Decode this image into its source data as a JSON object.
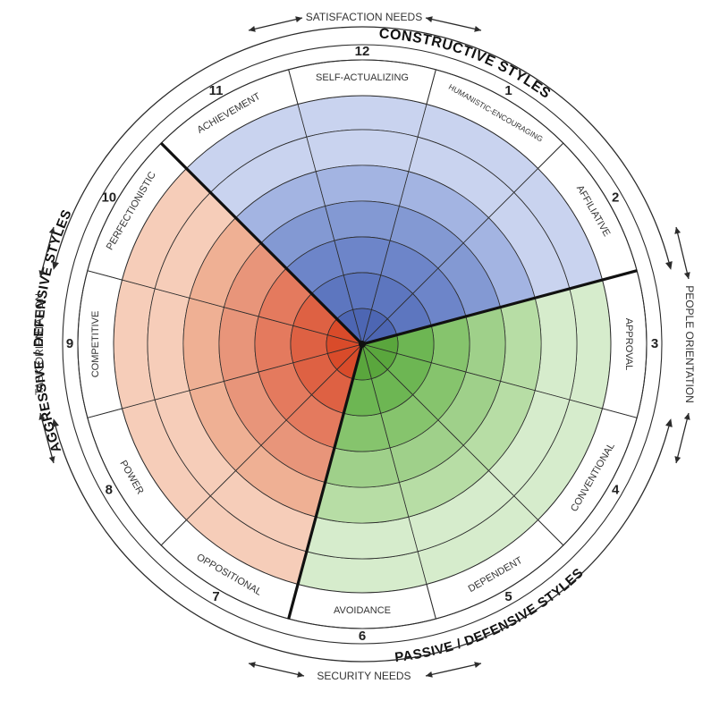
{
  "segments": [
    {
      "number": "1",
      "label": "HUMANISTIC-ENCOURAGING",
      "group": "constructive"
    },
    {
      "number": "2",
      "label": "AFFILIATIVE",
      "group": "constructive"
    },
    {
      "number": "3",
      "label": "APPROVAL",
      "group": "passive"
    },
    {
      "number": "4",
      "label": "CONVENTIONAL",
      "group": "passive"
    },
    {
      "number": "5",
      "label": "DEPENDENT",
      "group": "passive"
    },
    {
      "number": "6",
      "label": "AVOIDANCE",
      "group": "passive"
    },
    {
      "number": "7",
      "label": "OPPOSITIONAL",
      "group": "aggressive"
    },
    {
      "number": "8",
      "label": "POWER",
      "group": "aggressive"
    },
    {
      "number": "9",
      "label": "COMPETITIVE",
      "group": "aggressive"
    },
    {
      "number": "10",
      "label": "PERFECTIONISTIC",
      "group": "aggressive"
    },
    {
      "number": "11",
      "label": "ACHIEVEMENT",
      "group": "constructive"
    },
    {
      "number": "12",
      "label": "SELF-ACTUALIZING",
      "group": "constructive"
    }
  ],
  "group_titles": {
    "constructive": "CONSTRUCTIVE STYLES",
    "passive": "PASSIVE / DEFENSIVE STYLES",
    "aggressive": "AGGRESSIVE / DEFENSIVE STYLES"
  },
  "orientations": {
    "top": "SATISFACTION NEEDS",
    "bottom": "SECURITY NEEDS",
    "left": "TASK ORIENTATION",
    "right": "PEOPLE ORIENTATION"
  },
  "colors": {
    "constructive": [
      "#c9d3ef",
      "#a3b4e2",
      "#8399d3",
      "#6d85c9",
      "#5d76bf",
      "#4d66b3"
    ],
    "passive": [
      "#d6eccc",
      "#b7dda5",
      "#9fd08a",
      "#86c46d",
      "#6db653",
      "#5aa63d"
    ],
    "aggressive": [
      "#f6cdb9",
      "#efb094",
      "#e8957a",
      "#e47a5e",
      "#de6143",
      "#d94b2a"
    ]
  }
}
